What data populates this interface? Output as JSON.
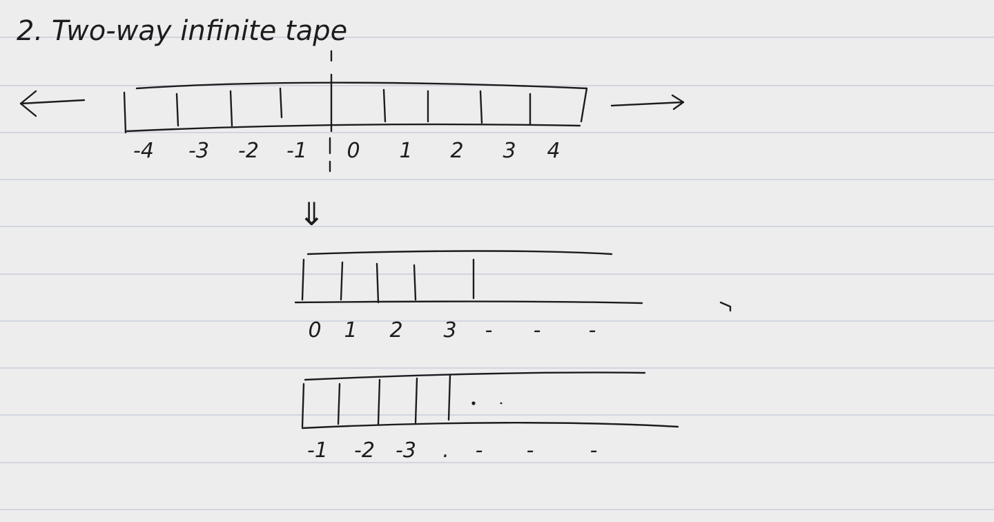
{
  "heading": {
    "title": "2. Two-way infinite tape"
  },
  "tape_top": {
    "labels": [
      "-4",
      "-3",
      "-2",
      "-1",
      "0",
      "1",
      "2",
      "3",
      "4"
    ]
  },
  "tape_right": {
    "labels": [
      "0",
      "1",
      "2",
      "3",
      "-",
      "-",
      "-"
    ]
  },
  "tape_left": {
    "labels": [
      "-1",
      "-2",
      "-3",
      ".",
      "-",
      "-",
      "-"
    ]
  },
  "transform_arrow": "⇓"
}
